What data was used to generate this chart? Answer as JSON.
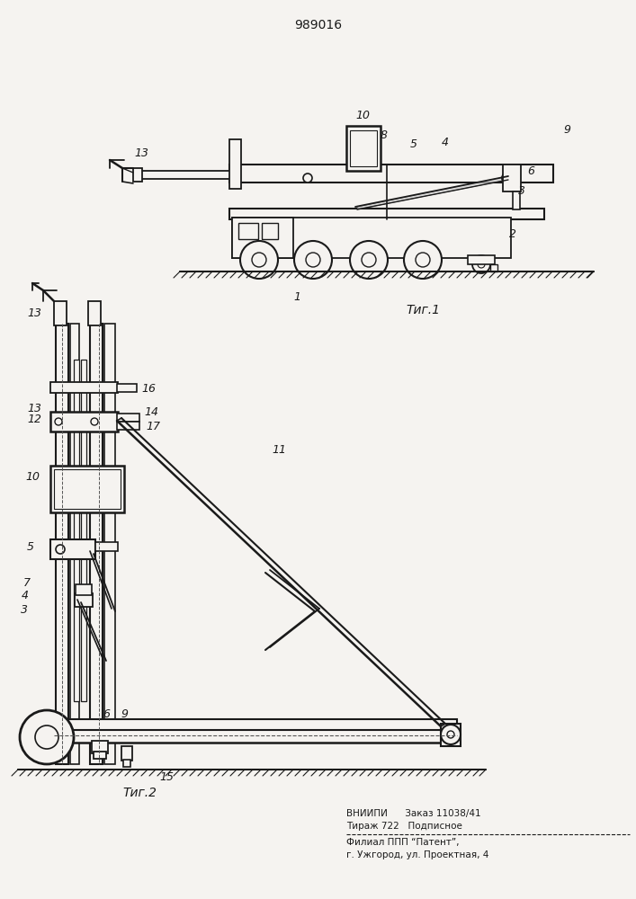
{
  "patent_number": "989016",
  "fig1_label": "Τиг.1",
  "fig2_label": "Τиг.2",
  "footer_line1": "ВНИИПИ      Заказ 11038/41",
  "footer_line2": "Тираж 722   Подписное",
  "footer_line3": "Филиал ППП “Патент”,",
  "footer_line4": "г. Ужгород, ул. Проектная, 4",
  "bg_color": "#f5f3f0",
  "line_color": "#1a1a1a",
  "text_color": "#1a1a1a"
}
